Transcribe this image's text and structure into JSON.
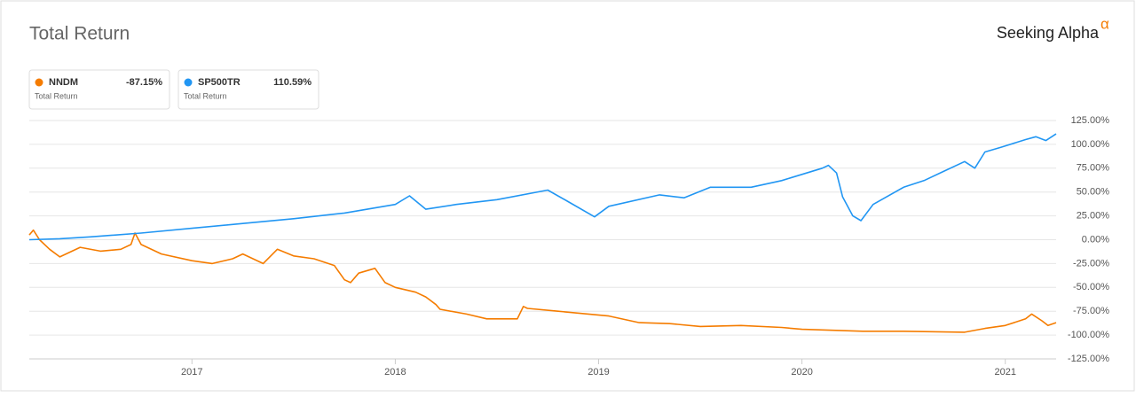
{
  "chart_data": {
    "type": "line",
    "title": "Total Return",
    "brand": "Seeking Alpha",
    "brand_mark": "α",
    "xlim": [
      2016.2,
      2021.25
    ],
    "xticks": [
      2017,
      2018,
      2019,
      2020,
      2021
    ],
    "ylim": [
      -125,
      125
    ],
    "yticks": [
      {
        "value": 125,
        "label": "125.00%"
      },
      {
        "value": 100,
        "label": "100.00%"
      },
      {
        "value": 75,
        "label": "75.00%"
      },
      {
        "value": 50,
        "label": "50.00%"
      },
      {
        "value": 25,
        "label": "25.00%"
      },
      {
        "value": 0,
        "label": "0.00%"
      },
      {
        "value": -25,
        "label": "-25.00%"
      },
      {
        "value": -50,
        "label": "-50.00%"
      },
      {
        "value": -75,
        "label": "-75.00%"
      },
      {
        "value": -100,
        "label": "-100.00%"
      },
      {
        "value": -125,
        "label": "-125.00%"
      }
    ],
    "grid": true,
    "series": [
      {
        "name": "NNDM",
        "color": "#f57c00",
        "subtitle": "Total Return",
        "total_return": {
          "value": -87.15,
          "label": "-87.15%"
        },
        "x": [
          2016.2,
          2016.22,
          2016.25,
          2016.3,
          2016.35,
          2016.45,
          2016.55,
          2016.65,
          2016.7,
          2016.72,
          2016.75,
          2016.85,
          2017.0,
          2017.1,
          2017.2,
          2017.25,
          2017.35,
          2017.42,
          2017.5,
          2017.6,
          2017.7,
          2017.75,
          2017.78,
          2017.82,
          2017.9,
          2017.95,
          2018.0,
          2018.1,
          2018.15,
          2018.2,
          2018.22,
          2018.35,
          2018.45,
          2018.6,
          2018.63,
          2018.65,
          2018.8,
          2018.95,
          2019.05,
          2019.2,
          2019.35,
          2019.5,
          2019.7,
          2019.9,
          2020.0,
          2020.3,
          2020.5,
          2020.8,
          2020.9,
          2021.0,
          2021.1,
          2021.13,
          2021.18,
          2021.21,
          2021.25
        ],
        "values": [
          5,
          10,
          0,
          -10,
          -18,
          -8,
          -12,
          -10,
          -5,
          7,
          -5,
          -15,
          -22,
          -25,
          -20,
          -15,
          -25,
          -10,
          -17,
          -20,
          -27,
          -42,
          -45,
          -35,
          -30,
          -45,
          -50,
          -55,
          -60,
          -68,
          -73,
          -78,
          -83,
          -83,
          -70,
          -72,
          -75,
          -78,
          -80,
          -87,
          -88,
          -91,
          -90,
          -92,
          -94,
          -96,
          -96,
          -97,
          -93,
          -90,
          -83,
          -78,
          -85,
          -90,
          -87
        ]
      },
      {
        "name": "SP500TR",
        "color": "#2196f3",
        "subtitle": "Total Return",
        "total_return": {
          "value": 110.59,
          "label": "110.59%"
        },
        "x": [
          2016.2,
          2016.35,
          2016.5,
          2016.75,
          2017.0,
          2017.25,
          2017.5,
          2017.75,
          2018.0,
          2018.07,
          2018.15,
          2018.3,
          2018.5,
          2018.75,
          2018.85,
          2018.98,
          2019.05,
          2019.3,
          2019.42,
          2019.55,
          2019.75,
          2019.9,
          2020.1,
          2020.13,
          2020.17,
          2020.2,
          2020.25,
          2020.29,
          2020.35,
          2020.5,
          2020.6,
          2020.7,
          2020.8,
          2020.85,
          2020.9,
          2020.98,
          2021.1,
          2021.15,
          2021.2,
          2021.25
        ],
        "values": [
          0,
          1,
          3,
          7,
          12,
          17,
          22,
          28,
          37,
          46,
          32,
          37,
          42,
          52,
          40,
          24,
          35,
          47,
          44,
          55,
          55,
          62,
          75,
          78,
          70,
          45,
          25,
          20,
          37,
          55,
          62,
          72,
          82,
          75,
          92,
          97,
          105,
          108,
          104,
          111
        ]
      }
    ]
  }
}
